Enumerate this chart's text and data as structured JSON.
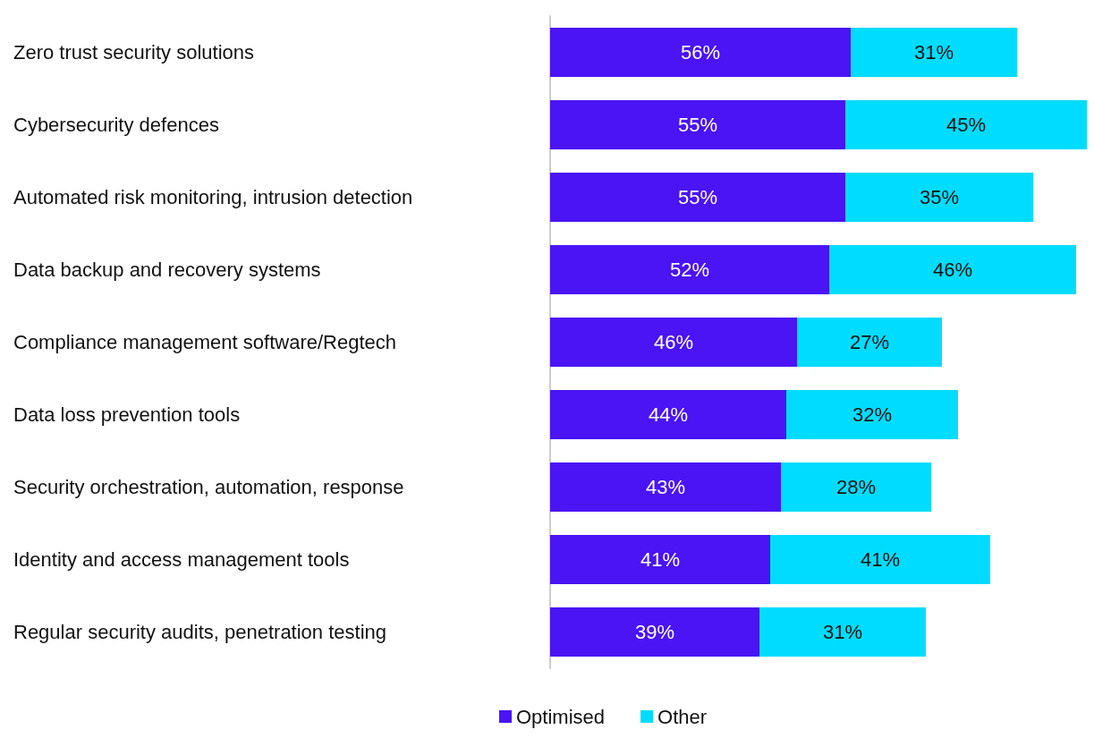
{
  "chart_data": {
    "type": "bar",
    "orientation": "horizontal",
    "stacked": true,
    "categories": [
      "Zero trust security solutions",
      "Cybersecurity defences",
      "Automated risk monitoring, intrusion detection",
      "Data backup and recovery systems",
      "Compliance management software/Regtech",
      "Data loss prevention tools",
      "Security orchestration, automation, response",
      "Identity and access management tools",
      "Regular security audits, penetration testing"
    ],
    "series": [
      {
        "name": "Optimised",
        "color": "#4a14f5",
        "values": [
          56,
          55,
          55,
          52,
          46,
          44,
          43,
          41,
          39
        ],
        "value_labels": [
          "56%",
          "55%",
          "55%",
          "52%",
          "46%",
          "44%",
          "43%",
          "41%",
          "39%"
        ]
      },
      {
        "name": "Other",
        "color": "#00dcff",
        "values": [
          31,
          45,
          35,
          46,
          27,
          32,
          28,
          41,
          31
        ],
        "value_labels": [
          "31%",
          "45%",
          "35%",
          "46%",
          "27%",
          "32%",
          "28%",
          "41%",
          "31%"
        ]
      }
    ],
    "xlim": [
      0,
      100
    ],
    "tick_labels": "y",
    "grid": false,
    "legend": "bottom"
  }
}
